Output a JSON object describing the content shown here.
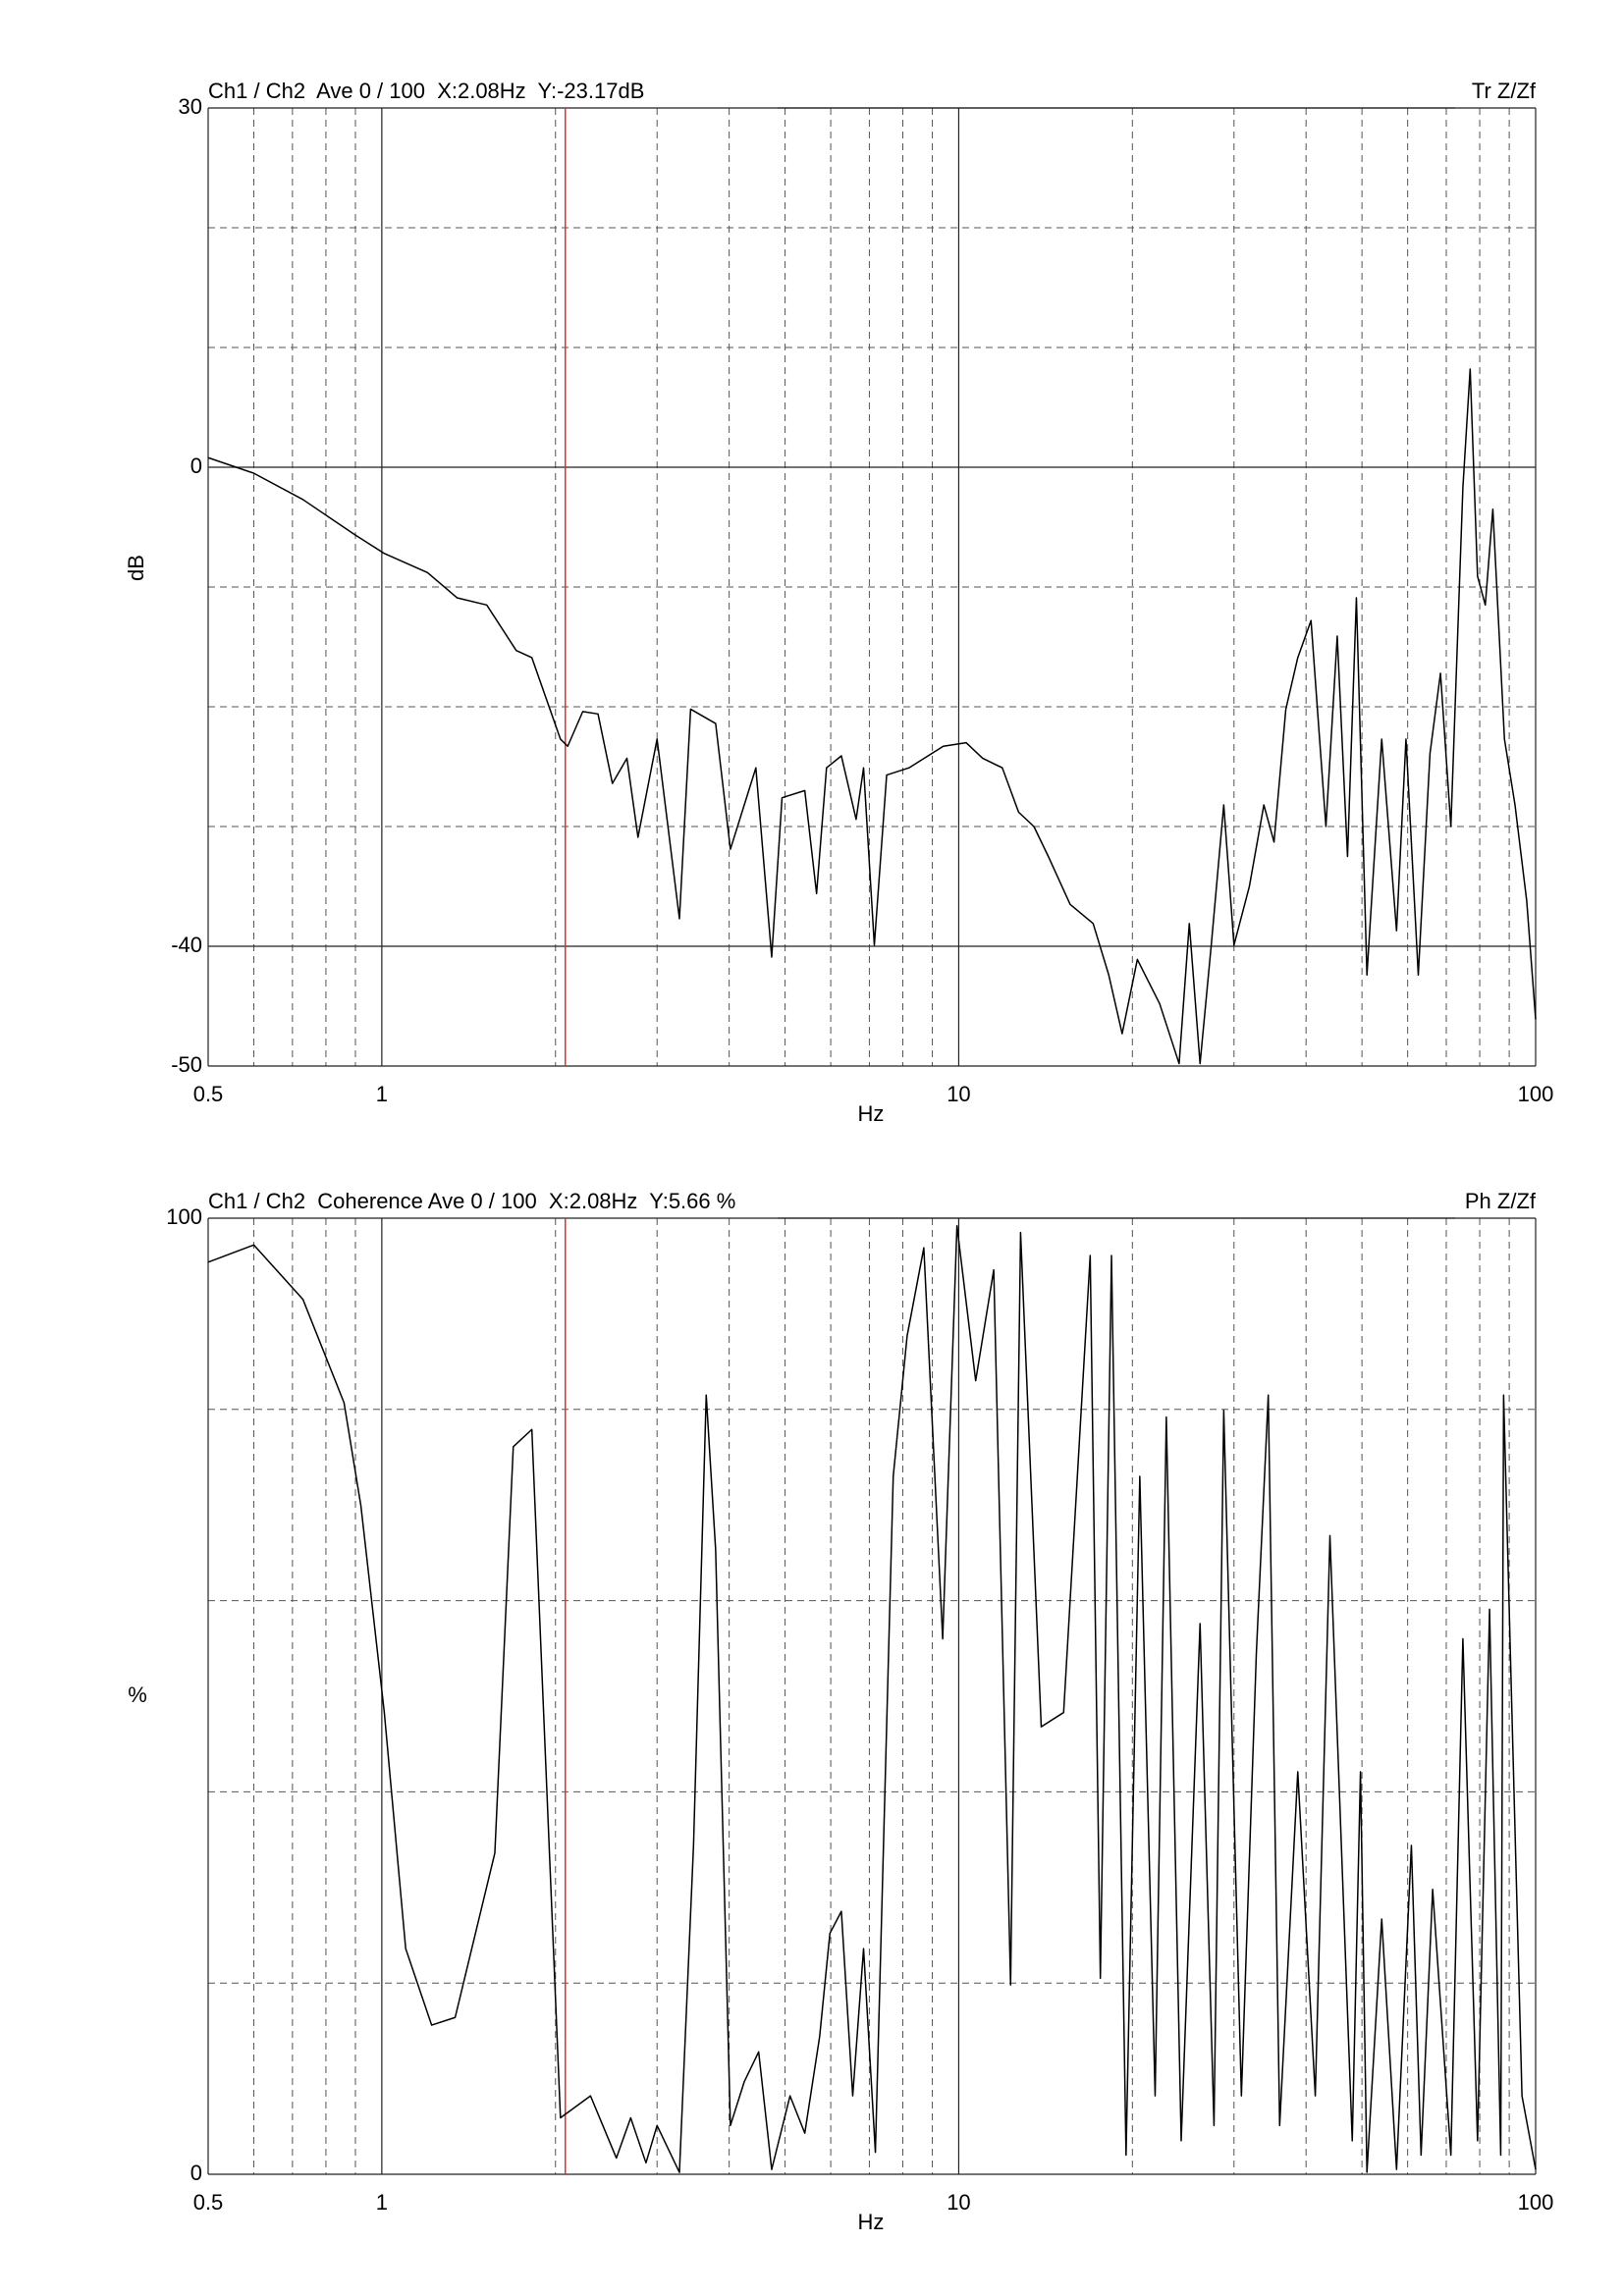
{
  "chart_data": [
    {
      "type": "line",
      "title": "Ch1 / Ch2  Ave 0 / 100  X:2.08Hz  Y:-23.17dB",
      "corner_label": "Tr Z/Zf",
      "xlabel": "Hz",
      "ylabel": "dB",
      "xscale": "log",
      "xlim": [
        0.5,
        100
      ],
      "xticks": [
        0.5,
        1,
        10,
        100
      ],
      "xgrid_minor": [
        0.6,
        0.7,
        0.8,
        0.9,
        2,
        3,
        4,
        5,
        6,
        7,
        8,
        9,
        20,
        30,
        40,
        50,
        60,
        70,
        80,
        90
      ],
      "ylim": [
        -50,
        30
      ],
      "yticks": [
        -50,
        -40,
        0,
        30
      ],
      "ygrid_minor": [
        -30,
        -20,
        -10,
        10,
        20
      ],
      "cursor": {
        "x": 2.08,
        "color": "#e03030"
      },
      "x": [
        0.5,
        0.6,
        0.73,
        0.896,
        1.01,
        1.2,
        1.35,
        1.52,
        1.71,
        1.82,
        2.04,
        2.1,
        2.23,
        2.37,
        2.51,
        2.66,
        2.78,
        3.0,
        3.28,
        3.43,
        3.79,
        4.02,
        4.45,
        4.74,
        4.94,
        5.41,
        5.67,
        5.9,
        6.26,
        6.64,
        6.84,
        7.14,
        7.5,
        8.2,
        9.4,
        10.3,
        11.0,
        11.9,
        12.7,
        13.5,
        14.3,
        15.6,
        17.1,
        18.2,
        19.2,
        20.4,
        22.3,
        24.1,
        25.1,
        26.2,
        27.4,
        28.8,
        30.0,
        31.9,
        33.8,
        35.2,
        36.9,
        38.7,
        40.8,
        43.3,
        45.3,
        47.2,
        48.9,
        51.0,
        54.1,
        57.4,
        59.6,
        62.6,
        65.6,
        68.4,
        71.3,
        74.8,
        77.0,
        79.3,
        81.8,
        84.3,
        88.3,
        92.1,
        96.5,
        100
      ],
      "series": [
        {
          "color": "#000000",
          "values": [
            0.8,
            -0.5,
            -2.7,
            -5.6,
            -7.2,
            -8.8,
            -10.9,
            -11.5,
            -15.3,
            -15.9,
            -22.7,
            -23.3,
            -20.4,
            -20.6,
            -26.4,
            -24.3,
            -30.9,
            -22.7,
            -37.7,
            -20.2,
            -21.4,
            -31.9,
            -25.1,
            -40.9,
            -27.6,
            -27.0,
            -35.6,
            -25.1,
            -24.1,
            -29.4,
            -25.1,
            -39.9,
            -25.7,
            -25.1,
            -23.3,
            -23.0,
            -24.3,
            -25.1,
            -28.8,
            -30.0,
            -32.5,
            -36.5,
            -38.1,
            -42.4,
            -47.3,
            -41.1,
            -44.8,
            -49.8,
            -38.1,
            -49.8,
            -39.9,
            -28.2,
            -39.9,
            -35.0,
            -28.2,
            -31.3,
            -20.2,
            -15.9,
            -12.8,
            -30.0,
            -14.1,
            -32.5,
            -10.9,
            -42.4,
            -22.7,
            -38.7,
            -22.7,
            -42.4,
            -23.9,
            -17.2,
            -30.0,
            -1.7,
            8.2,
            -9.1,
            -11.5,
            -3.5,
            -22.7,
            -28.2,
            -36.2,
            -46.1
          ]
        }
      ]
    },
    {
      "type": "line",
      "title": "Ch1 / Ch2  Coherence Ave 0 / 100  X:2.08Hz  Y:5.66 %",
      "corner_label": "Ph Z/Zf",
      "xlabel": "Hz",
      "ylabel": "%",
      "xscale": "log",
      "xlim": [
        0.5,
        100
      ],
      "xticks": [
        0.5,
        1,
        10,
        100
      ],
      "xgrid_minor": [
        0.6,
        0.7,
        0.8,
        0.9,
        2,
        3,
        4,
        5,
        6,
        7,
        8,
        9,
        20,
        30,
        40,
        50,
        60,
        70,
        80,
        90
      ],
      "ylim": [
        0,
        100
      ],
      "yticks": [
        0,
        100
      ],
      "ygrid_minor": [
        20,
        40,
        60,
        80
      ],
      "cursor": {
        "x": 2.08,
        "color": "#e03030"
      },
      "x": [
        0.5,
        0.6,
        0.73,
        0.86,
        0.92,
        1.01,
        1.1,
        1.22,
        1.34,
        1.57,
        1.69,
        1.82,
        2.04,
        2.3,
        2.55,
        2.7,
        2.87,
        3.0,
        3.28,
        3.47,
        3.65,
        3.79,
        4.02,
        4.25,
        4.5,
        4.74,
        5.1,
        5.41,
        5.74,
        5.98,
        6.26,
        6.55,
        6.84,
        7.17,
        7.7,
        8.14,
        8.7,
        9.38,
        9.93,
        10.7,
        11.5,
        12.3,
        12.8,
        13.9,
        15.2,
        16.9,
        17.6,
        18.4,
        19.5,
        20.6,
        21.9,
        22.9,
        24.3,
        26.2,
        27.7,
        28.8,
        30.9,
        32.8,
        34.4,
        36.0,
        38.7,
        41.5,
        44.0,
        48.1,
        49.7,
        51.0,
        54.1,
        57.4,
        60.9,
        63.3,
        66.3,
        71.3,
        74.8,
        79.3,
        83.2,
        87.0,
        88.0,
        94.7,
        100
      ],
      "series": [
        {
          "color": "#000000",
          "values": [
            95.4,
            97.2,
            91.5,
            80.7,
            69.9,
            48.3,
            23.6,
            15.6,
            16.4,
            33.6,
            76.1,
            77.9,
            5.9,
            8.2,
            1.7,
            5.9,
            1.2,
            5.1,
            0.2,
            34.4,
            81.5,
            65.3,
            5.1,
            9.7,
            12.8,
            0.5,
            8.2,
            4.3,
            14.4,
            25.2,
            27.5,
            8.2,
            23.6,
            2.3,
            73.0,
            87.7,
            96.9,
            56.0,
            99.2,
            83.0,
            94.6,
            19.8,
            98.5,
            46.8,
            48.3,
            96.1,
            20.5,
            96.1,
            2.0,
            73.0,
            8.2,
            79.2,
            3.5,
            57.6,
            5.1,
            79.9,
            8.2,
            54.5,
            81.5,
            5.1,
            42.1,
            8.2,
            66.8,
            3.5,
            42.1,
            0.2,
            26.7,
            0.5,
            34.4,
            2.0,
            29.8,
            2.0,
            56.0,
            3.5,
            59.1,
            2.0,
            81.5,
            8.2,
            0.5
          ]
        }
      ]
    }
  ]
}
